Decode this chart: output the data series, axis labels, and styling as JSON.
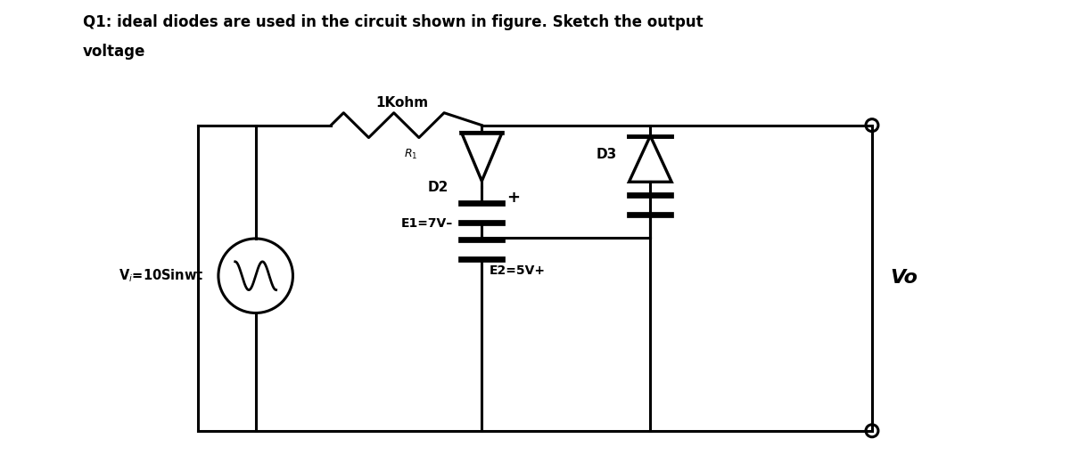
{
  "title_line1": "Q1: ideal diodes are used in the circuit shown in figure. Sketch the output",
  "title_line2": "voltage",
  "bg_color": "#ffffff",
  "line_color": "#000000",
  "text_color": "#000000",
  "fig_width": 12.0,
  "fig_height": 5.2,
  "dpi": 100,
  "label_Vi": "V$_i$=10Sinwt",
  "label_R": "1Kohm",
  "label_R_sub": "R$_1$",
  "label_D2": "D2",
  "label_D3": "D3",
  "label_E1": "E1=7V",
  "label_E2": "E2=5V",
  "label_plus_E1": "+",
  "label_plus_E2": "+",
  "label_Vo": "Vo"
}
